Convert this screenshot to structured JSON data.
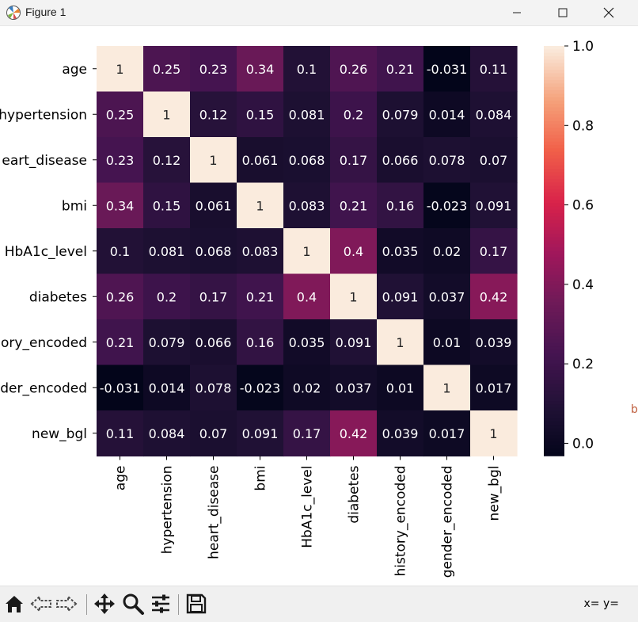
{
  "window": {
    "title": "Figure 1",
    "icons": {
      "app": "matplotlib-icon",
      "minimize": "minimize-icon",
      "maximize": "maximize-icon",
      "close": "close-icon"
    }
  },
  "offscreen_fragment": "b",
  "toolbar": {
    "icons": [
      "home-icon",
      "back-arrow-icon",
      "forward-arrow-icon",
      "pan-icon",
      "zoom-icon",
      "configure-subplots-icon",
      "save-icon"
    ],
    "coords_readout": "x= y="
  },
  "chart_data": {
    "type": "heatmap",
    "title": "",
    "xlabel": "",
    "ylabel": "",
    "variables": [
      "age",
      "hypertension",
      "heart_disease",
      "bmi",
      "HbA1c_level",
      "diabetes",
      "history_encoded",
      "gender_encoded",
      "new_bgl"
    ],
    "row_labels_visible": [
      "age",
      "hypertension",
      "eart_disease",
      "bmi",
      "HbA1c_level",
      "diabetes",
      "ory_encoded",
      "der_encoded",
      "new_bgl"
    ],
    "col_labels": [
      "age",
      "hypertension",
      "heart_disease",
      "bmi",
      "HbA1c_level",
      "diabetes",
      "history_encoded",
      "gender_encoded",
      "new_bgl"
    ],
    "values": [
      [
        1,
        0.25,
        0.23,
        0.34,
        0.1,
        0.26,
        0.21,
        -0.031,
        0.11
      ],
      [
        0.25,
        1,
        0.12,
        0.15,
        0.081,
        0.2,
        0.079,
        0.014,
        0.084
      ],
      [
        0.23,
        0.12,
        1,
        0.061,
        0.068,
        0.17,
        0.066,
        0.078,
        0.07
      ],
      [
        0.34,
        0.15,
        0.061,
        1,
        0.083,
        0.21,
        0.16,
        -0.023,
        0.091
      ],
      [
        0.1,
        0.081,
        0.068,
        0.083,
        1,
        0.4,
        0.035,
        0.02,
        0.17
      ],
      [
        0.26,
        0.2,
        0.17,
        0.21,
        0.4,
        1,
        0.091,
        0.037,
        0.42
      ],
      [
        0.21,
        0.079,
        0.066,
        0.16,
        0.035,
        0.091,
        1,
        0.01,
        0.039
      ],
      [
        -0.031,
        0.014,
        0.078,
        -0.023,
        0.02,
        0.037,
        0.01,
        1,
        0.017
      ],
      [
        0.11,
        0.084,
        0.07,
        0.091,
        0.17,
        0.42,
        0.039,
        0.017,
        1
      ]
    ],
    "labels": [
      [
        "1",
        "0.25",
        "0.23",
        "0.34",
        "0.1",
        "0.26",
        "0.21",
        "-0.031",
        "0.11"
      ],
      [
        "0.25",
        "1",
        "0.12",
        "0.15",
        "0.081",
        "0.2",
        "0.079",
        "0.014",
        "0.084"
      ],
      [
        "0.23",
        "0.12",
        "1",
        "0.061",
        "0.068",
        "0.17",
        "0.066",
        "0.078",
        "0.07"
      ],
      [
        "0.34",
        "0.15",
        "0.061",
        "1",
        "0.083",
        "0.21",
        "0.16",
        "-0.023",
        "0.091"
      ],
      [
        "0.1",
        "0.081",
        "0.068",
        "0.083",
        "1",
        "0.4",
        "0.035",
        "0.02",
        "0.17"
      ],
      [
        "0.26",
        "0.2",
        "0.17",
        "0.21",
        "0.4",
        "1",
        "0.091",
        "0.037",
        "0.42"
      ],
      [
        "0.21",
        "0.079",
        "0.066",
        "0.16",
        "0.035",
        "0.091",
        "1",
        "0.01",
        "0.039"
      ],
      [
        "-0.031",
        "0.014",
        "0.078",
        "-0.023",
        "0.02",
        "0.037",
        "0.01",
        "1",
        "0.017"
      ],
      [
        "0.11",
        "0.084",
        "0.07",
        "0.091",
        "0.17",
        "0.42",
        "0.039",
        "0.017",
        "1"
      ]
    ],
    "annotations": true,
    "colormap": "rocket",
    "colorbar": {
      "range": [
        -0.031,
        1.0
      ],
      "ticks": [
        0.0,
        0.2,
        0.4,
        0.6,
        0.8,
        1.0
      ],
      "tick_labels": [
        "0.0",
        "0.2",
        "0.4",
        "0.6",
        "0.8",
        "1.0"
      ]
    },
    "grid": false,
    "legend": "none"
  }
}
